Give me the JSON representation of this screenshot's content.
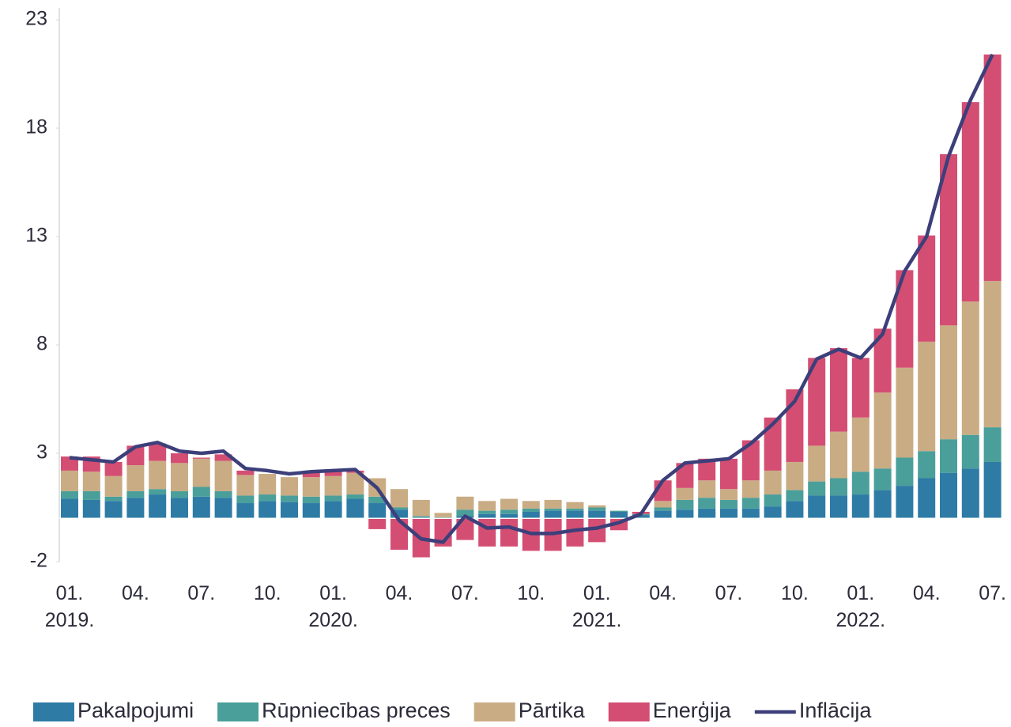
{
  "chart_data": {
    "type": "bar",
    "stacked": true,
    "categories": [
      "01.\n2019.",
      null,
      null,
      "04.",
      null,
      null,
      "07.",
      null,
      null,
      "10.",
      null,
      null,
      "01.\n2020.",
      null,
      null,
      "04.",
      null,
      null,
      "07.",
      null,
      null,
      "10.",
      null,
      null,
      "01.\n2021.",
      null,
      null,
      "04.",
      null,
      null,
      "07.",
      null,
      null,
      "10.",
      null,
      null,
      "01.\n2022.",
      null,
      null,
      "04.",
      null,
      null,
      "07."
    ],
    "series": [
      {
        "name": "Pakalpojumi",
        "color": "#2e7ba6",
        "values": [
          0.9,
          0.85,
          0.8,
          0.95,
          1.1,
          0.95,
          1.0,
          0.95,
          0.7,
          0.8,
          0.75,
          0.7,
          0.8,
          0.9,
          0.7,
          0.4,
          0.05,
          0,
          0.1,
          0.2,
          0.2,
          0.3,
          0.35,
          0.35,
          0.35,
          0.3,
          0.15,
          0.35,
          0.4,
          0.45,
          0.45,
          0.45,
          0.55,
          0.8,
          1.05,
          1.05,
          1.1,
          1.3,
          1.5,
          1.85,
          2.1,
          2.3,
          2.6
        ]
      },
      {
        "name": "Rūpniecības preces",
        "color": "#4a9f9a",
        "values": [
          0.35,
          0.4,
          0.2,
          0.3,
          0.25,
          0.3,
          0.45,
          0.3,
          0.35,
          0.3,
          0.3,
          0.3,
          0.25,
          0.2,
          0.3,
          0.1,
          0.05,
          0.05,
          0.3,
          0.15,
          0.2,
          0.15,
          0.1,
          0.1,
          0.15,
          0.05,
          0.05,
          0.15,
          0.45,
          0.5,
          0.4,
          0.5,
          0.55,
          0.5,
          0.65,
          0.8,
          1.05,
          1.0,
          1.3,
          1.25,
          1.55,
          1.55,
          1.6
        ]
      },
      {
        "name": "Pārtika",
        "color": "#c9ac84",
        "values": [
          0.95,
          0.9,
          0.95,
          1.2,
          1.3,
          1.3,
          1.3,
          1.4,
          0.95,
          0.95,
          0.85,
          0.9,
          0.9,
          1.0,
          0.85,
          0.85,
          0.75,
          0.2,
          0.6,
          0.45,
          0.5,
          0.35,
          0.4,
          0.3,
          0.1,
          0,
          0,
          0.3,
          0.55,
          0.8,
          0.5,
          0.8,
          1.1,
          1.3,
          1.65,
          2.15,
          2.5,
          3.5,
          4.15,
          5.05,
          5.25,
          6.15,
          6.75
        ]
      },
      {
        "name": "Enerģija",
        "color": "#d44e73",
        "values": [
          0.65,
          0.7,
          0.65,
          0.9,
          0.8,
          0.45,
          0.05,
          0.3,
          0.2,
          0,
          0,
          0.2,
          0.25,
          0.1,
          -0.5,
          -1.45,
          -1.8,
          -1.3,
          -1.0,
          -1.3,
          -1.3,
          -1.5,
          -1.5,
          -1.3,
          -1.1,
          -0.55,
          0.1,
          0.95,
          1.15,
          1.0,
          1.4,
          1.85,
          2.45,
          3.35,
          4.05,
          3.85,
          2.75,
          2.95,
          4.5,
          4.9,
          7.9,
          9.2,
          10.45
        ]
      },
      {
        "name": "Inflācija",
        "type": "line",
        "color": "#3d3f7a",
        "values": [
          2.8,
          2.7,
          2.6,
          3.3,
          3.5,
          3.1,
          3.0,
          3.1,
          2.3,
          2.2,
          2.05,
          2.15,
          2.2,
          2.25,
          1.4,
          -0.1,
          -0.95,
          -1.1,
          0.1,
          -0.45,
          -0.4,
          -0.7,
          -0.7,
          -0.55,
          -0.45,
          -0.2,
          0.2,
          1.75,
          2.55,
          2.65,
          2.75,
          3.45,
          4.35,
          5.4,
          7.35,
          7.8,
          7.4,
          8.5,
          11.4,
          13.0,
          16.7,
          19.3,
          21.4
        ]
      }
    ],
    "ylim": [
      -2,
      23
    ],
    "yticks": [
      -2,
      3,
      8,
      13,
      18,
      23
    ],
    "legend": "bottom"
  }
}
